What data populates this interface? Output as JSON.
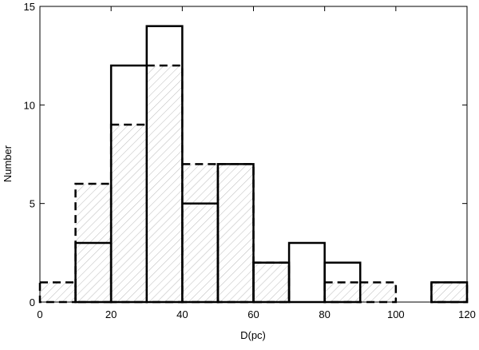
{
  "chart_data": {
    "type": "histogram",
    "xlabel": "D(pc)",
    "ylabel": "Number",
    "bins": [
      0,
      10,
      20,
      30,
      40,
      50,
      60,
      70,
      80,
      90,
      100,
      110,
      120
    ],
    "series": [
      {
        "color": "#000000",
        "line_style": "dashed",
        "fill": "hatch",
        "hatch_color": "#bbbbbb",
        "values": [
          1,
          6,
          9,
          12,
          7,
          7,
          2,
          0,
          1,
          1,
          0,
          1
        ]
      },
      {
        "color": "#000000",
        "line_style": "solid",
        "fill": "none",
        "values": [
          0,
          3,
          12,
          14,
          5,
          7,
          2,
          3,
          2,
          0,
          0,
          1
        ]
      }
    ],
    "xlim": [
      0,
      120
    ],
    "xticks": [
      0,
      20,
      40,
      60,
      80,
      100,
      120
    ],
    "ylim": [
      0,
      15
    ],
    "yticks": [
      0,
      5,
      10,
      15
    ],
    "grid": false
  }
}
